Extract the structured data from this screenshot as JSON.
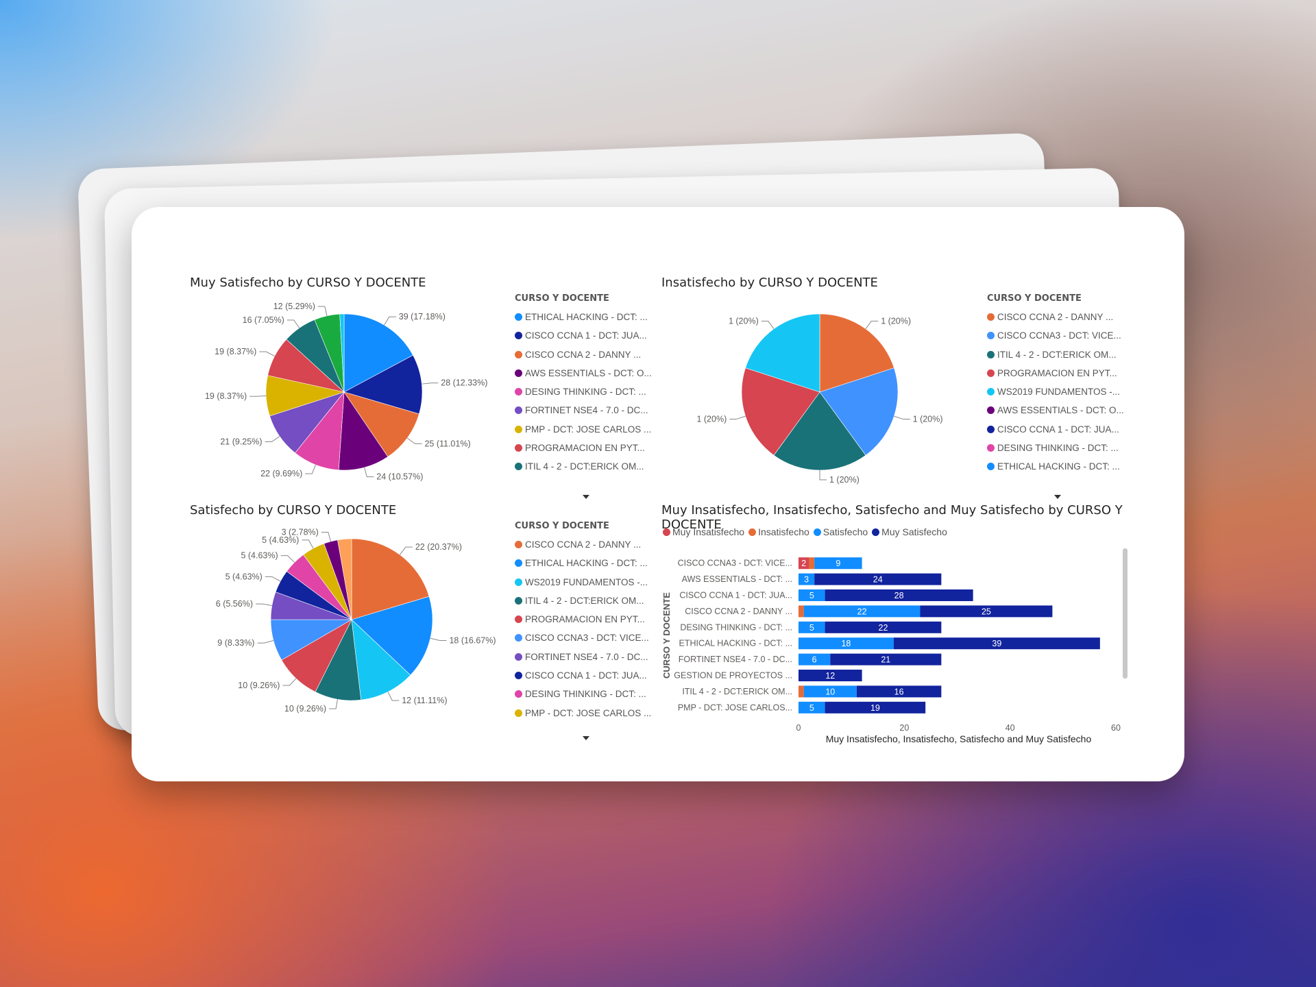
{
  "palette": [
    "#118DFF",
    "#12239E",
    "#E66C37",
    "#6B007B",
    "#E044A7",
    "#744EC2",
    "#D9B300",
    "#D64550",
    "#197278",
    "#1AAB40",
    "#15C6F4",
    "#4092FF",
    "#FFA058"
  ],
  "legend_header": "CURSO Y DOCENTE",
  "charts": [
    {
      "title": "Muy Satisfecho by CURSO Y DOCENTE",
      "legend": [
        {
          "label": "ETHICAL HACKING - DCT: ...",
          "color": "#118DFF"
        },
        {
          "label": "CISCO CCNA 1 - DCT: JUA...",
          "color": "#12239E"
        },
        {
          "label": "CISCO CCNA 2 - DANNY ...",
          "color": "#E66C37"
        },
        {
          "label": "AWS ESSENTIALS - DCT: O...",
          "color": "#6B007B"
        },
        {
          "label": "DESING THINKING - DCT: ...",
          "color": "#E044A7"
        },
        {
          "label": "FORTINET NSE4 - 7.0 - DC...",
          "color": "#744EC2"
        },
        {
          "label": "PMP - DCT: JOSE CARLOS ...",
          "color": "#D9B300"
        },
        {
          "label": "PROGRAMACION EN PYT...",
          "color": "#D64550"
        },
        {
          "label": "ITIL 4 - 2 - DCT:ERICK OM...",
          "color": "#197278"
        }
      ]
    },
    {
      "title": "Insatisfecho by CURSO Y DOCENTE",
      "legend": [
        {
          "label": "CISCO CCNA 2 - DANNY ...",
          "color": "#E66C37"
        },
        {
          "label": "CISCO CCNA3 - DCT: VICE...",
          "color": "#4092FF"
        },
        {
          "label": "ITIL 4 - 2 - DCT:ERICK OM...",
          "color": "#197278"
        },
        {
          "label": "PROGRAMACION EN PYT...",
          "color": "#D64550"
        },
        {
          "label": "WS2019 FUNDAMENTOS -...",
          "color": "#15C6F4"
        },
        {
          "label": "AWS ESSENTIALS - DCT: O...",
          "color": "#6B007B"
        },
        {
          "label": "CISCO CCNA 1 - DCT: JUA...",
          "color": "#12239E"
        },
        {
          "label": "DESING THINKING - DCT: ...",
          "color": "#E044A7"
        },
        {
          "label": "ETHICAL HACKING - DCT: ...",
          "color": "#118DFF"
        }
      ]
    },
    {
      "title": "Satisfecho by CURSO Y DOCENTE",
      "legend": [
        {
          "label": "CISCO CCNA 2 - DANNY ...",
          "color": "#E66C37"
        },
        {
          "label": "ETHICAL HACKING - DCT: ...",
          "color": "#118DFF"
        },
        {
          "label": "WS2019 FUNDAMENTOS -...",
          "color": "#15C6F4"
        },
        {
          "label": "ITIL 4 - 2 - DCT:ERICK OM...",
          "color": "#197278"
        },
        {
          "label": "PROGRAMACION EN PYT...",
          "color": "#D64550"
        },
        {
          "label": "CISCO CCNA3 - DCT: VICE...",
          "color": "#4092FF"
        },
        {
          "label": "FORTINET NSE4 - 7.0 - DC...",
          "color": "#744EC2"
        },
        {
          "label": "CISCO CCNA 1 - DCT: JUA...",
          "color": "#12239E"
        },
        {
          "label": "DESING THINKING - DCT: ...",
          "color": "#E044A7"
        },
        {
          "label": "PMP - DCT: JOSE CARLOS ...",
          "color": "#D9B300"
        }
      ]
    },
    {
      "title": "Muy Insatisfecho, Insatisfecho, Satisfecho and Muy Satisfecho by CURSO Y DOCENTE"
    }
  ],
  "chart_data": [
    {
      "type": "pie",
      "title": "Muy Satisfecho by CURSO Y DOCENTE",
      "slices": [
        {
          "value": 39,
          "label": "39 (17.18%)",
          "color": "#118DFF"
        },
        {
          "value": 28,
          "label": "28 (12.33%)",
          "color": "#12239E"
        },
        {
          "value": 25,
          "label": "25 (11.01%)",
          "color": "#E66C37"
        },
        {
          "value": 24,
          "label": "24 (10.57%)",
          "color": "#6B007B"
        },
        {
          "value": 22,
          "label": "22 (9.69%)",
          "color": "#E044A7"
        },
        {
          "value": 21,
          "label": "21 (9.25%)",
          "color": "#744EC2"
        },
        {
          "value": 19,
          "label": "19 (8.37%)",
          "color": "#D9B300"
        },
        {
          "value": 19,
          "label": "19 (8.37%)",
          "color": "#D64550"
        },
        {
          "value": 16,
          "label": "16 (7.05%)",
          "color": "#197278"
        },
        {
          "value": 12,
          "label": "12 (5.29%)",
          "color": "#1AAB40"
        },
        {
          "value": 2,
          "label": "",
          "color": "#15C6F4"
        }
      ]
    },
    {
      "type": "pie",
      "title": "Insatisfecho by CURSO Y DOCENTE",
      "slices": [
        {
          "value": 1,
          "label": "1 (20%)",
          "color": "#E66C37"
        },
        {
          "value": 1,
          "label": "1 (20%)",
          "color": "#4092FF"
        },
        {
          "value": 1,
          "label": "1 (20%)",
          "color": "#197278"
        },
        {
          "value": 1,
          "label": "1 (20%)",
          "color": "#D64550"
        },
        {
          "value": 1,
          "label": "1 (20%)",
          "color": "#15C6F4"
        }
      ]
    },
    {
      "type": "pie",
      "title": "Satisfecho by CURSO Y DOCENTE",
      "slices": [
        {
          "value": 22,
          "label": "22 (20.37%)",
          "color": "#E66C37"
        },
        {
          "value": 18,
          "label": "18 (16.67%)",
          "color": "#118DFF"
        },
        {
          "value": 12,
          "label": "12 (11.11%)",
          "color": "#15C6F4"
        },
        {
          "value": 10,
          "label": "10 (9.26%)",
          "color": "#197278"
        },
        {
          "value": 10,
          "label": "10 (9.26%)",
          "color": "#D64550"
        },
        {
          "value": 9,
          "label": "9 (8.33%)",
          "color": "#4092FF"
        },
        {
          "value": 6,
          "label": "6 (5.56%)",
          "color": "#744EC2"
        },
        {
          "value": 5,
          "label": "5 (4.63%)",
          "color": "#12239E"
        },
        {
          "value": 5,
          "label": "5 (4.63%)",
          "color": "#E044A7"
        },
        {
          "value": 5,
          "label": "5 (4.63%)",
          "color": "#D9B300"
        },
        {
          "value": 3,
          "label": "3 (2.78%)",
          "color": "#6B007B"
        },
        {
          "value": 3,
          "label": "",
          "color": "#FFA058"
        }
      ]
    },
    {
      "type": "bar",
      "orientation": "horizontal",
      "stacked": true,
      "title": "Muy Insatisfecho, Insatisfecho, Satisfecho and Muy Satisfecho by CURSO Y DOCENTE",
      "ylabel": "CURSO Y DOCENTE",
      "xlabel": "Muy Insatisfecho, Insatisfecho, Satisfecho and Muy Satisfecho",
      "xlim": [
        0,
        60
      ],
      "xticks": [
        "0",
        "20",
        "40",
        "60"
      ],
      "legend_position": "top-left",
      "categories": [
        "CISCO CCNA3 - DCT: VICE...",
        "AWS ESSENTIALS - DCT: ...",
        "CISCO CCNA 1 - DCT: JUA...",
        "CISCO CCNA 2 - DANNY ...",
        "DESING THINKING - DCT: ...",
        "ETHICAL HACKING - DCT: ...",
        "FORTINET NSE4 - 7.0 - DC...",
        "GESTION DE PROYECTOS ...",
        "ITIL 4 - 2 - DCT:ERICK OM...",
        "PMP - DCT: JOSE CARLOS..."
      ],
      "series": [
        {
          "name": "Muy Insatisfecho",
          "color": "#D64550",
          "values": [
            2,
            0,
            0,
            0,
            0,
            0,
            0,
            0,
            0,
            0
          ]
        },
        {
          "name": "Insatisfecho",
          "color": "#E66C37",
          "values": [
            1,
            0,
            0,
            1,
            0,
            0,
            0,
            0,
            1,
            0
          ]
        },
        {
          "name": "Satisfecho",
          "color": "#118DFF",
          "values": [
            9,
            3,
            5,
            22,
            5,
            18,
            6,
            0,
            10,
            5
          ]
        },
        {
          "name": "Muy Satisfecho",
          "color": "#12239E",
          "values": [
            0,
            24,
            28,
            25,
            22,
            39,
            21,
            12,
            16,
            19
          ]
        }
      ]
    }
  ]
}
